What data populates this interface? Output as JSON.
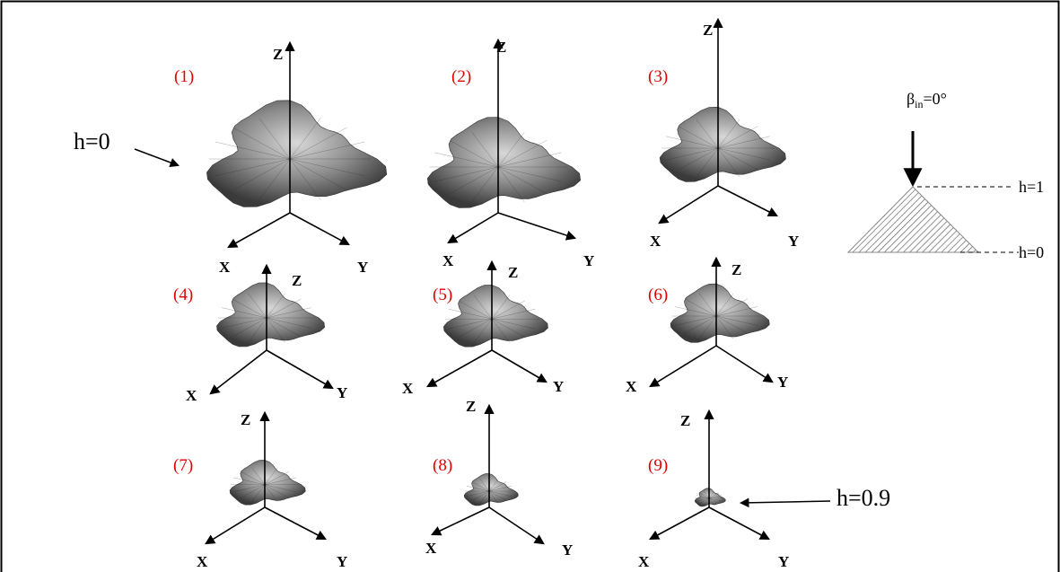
{
  "panels": [
    {
      "label": "(1)",
      "x": "X",
      "y": "Y",
      "z": "Z"
    },
    {
      "label": "(2)",
      "x": "X",
      "y": "Y",
      "z": "Z"
    },
    {
      "label": "(3)",
      "x": "X",
      "y": "Y",
      "z": "Z"
    },
    {
      "label": "(4)",
      "x": "X",
      "y": "Y",
      "z": "Z"
    },
    {
      "label": "(5)",
      "x": "X",
      "y": "Y",
      "z": "Z"
    },
    {
      "label": "(6)",
      "x": "X",
      "y": "Y",
      "z": "Z"
    },
    {
      "label": "(7)",
      "x": "X",
      "y": "Y",
      "z": "Z"
    },
    {
      "label": "(8)",
      "x": "X",
      "y": "Y",
      "z": "Z"
    },
    {
      "label": "(9)",
      "x": "X",
      "y": "Y",
      "z": "Z"
    }
  ],
  "annotations": {
    "left": "h=0",
    "right": "h=0.9"
  },
  "inset": {
    "beta": "β",
    "subscript": "in",
    "value": "=0°",
    "top": "h=1",
    "bottom": "h=0"
  }
}
